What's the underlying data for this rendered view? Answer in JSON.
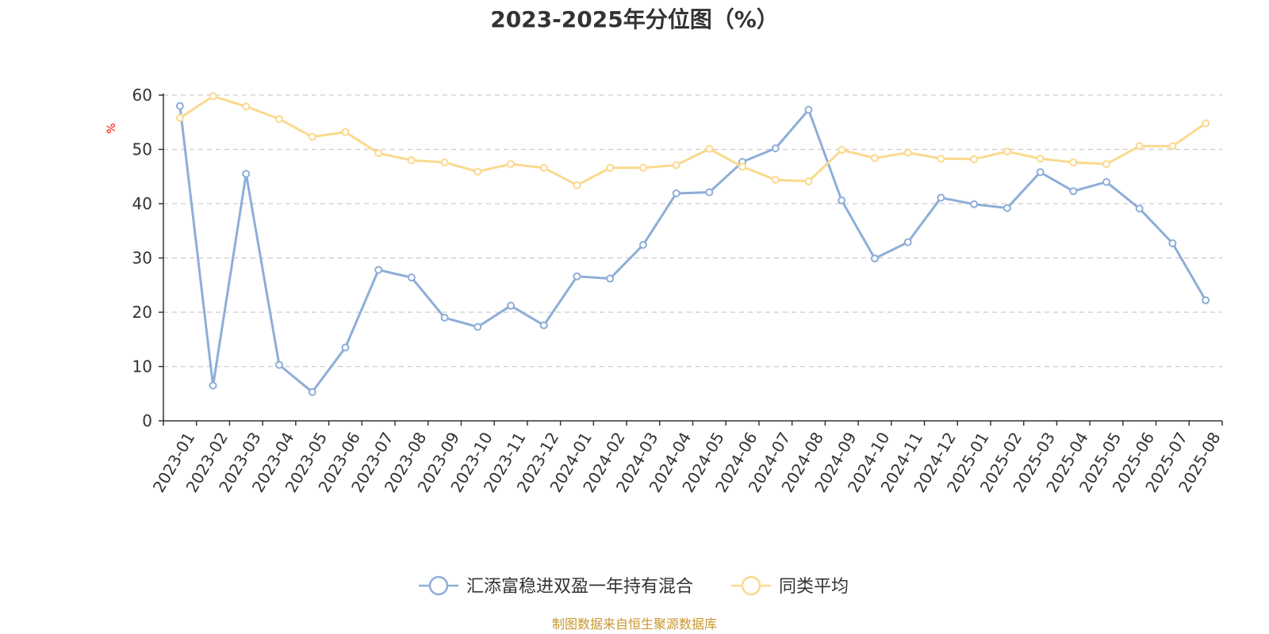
{
  "chart_data": {
    "type": "line",
    "title": "2023-2025年分位图（%）",
    "ylabel": "%",
    "ylim": [
      0,
      60
    ],
    "yticks": [
      0,
      10,
      20,
      30,
      40,
      50,
      60
    ],
    "grid": "horizontal-dashed",
    "legend_position": "bottom-center",
    "categories": [
      "2023-01",
      "2023-02",
      "2023-03",
      "2023-04",
      "2023-05",
      "2023-06",
      "2023-07",
      "2023-08",
      "2023-09",
      "2023-10",
      "2023-11",
      "2023-12",
      "2024-01",
      "2024-02",
      "2024-03",
      "2024-04",
      "2024-05",
      "2024-06",
      "2024-07",
      "2024-08",
      "2024-09",
      "2024-10",
      "2024-11",
      "2024-12",
      "2025-01",
      "2025-02",
      "2025-03",
      "2025-04",
      "2025-05",
      "2025-06",
      "2025-07",
      "2025-08"
    ],
    "series": [
      {
        "name": "汇添富稳进双盈一年持有混合",
        "color": "#8eaed8",
        "values": [
          58.0,
          6.5,
          45.5,
          10.3,
          5.3,
          13.5,
          27.8,
          26.4,
          19.0,
          17.3,
          21.2,
          17.6,
          26.6,
          26.2,
          32.4,
          41.9,
          42.1,
          47.7,
          50.2,
          57.3,
          40.6,
          29.9,
          32.9,
          41.1,
          39.9,
          39.2,
          45.8,
          42.3,
          44.0,
          39.1,
          32.7,
          22.2
        ]
      },
      {
        "name": "同类平均",
        "color": "#fbd98e",
        "values": [
          55.8,
          59.8,
          57.9,
          55.6,
          52.3,
          53.2,
          49.3,
          48.0,
          47.6,
          45.9,
          47.3,
          46.6,
          43.4,
          46.6,
          46.6,
          47.1,
          50.1,
          46.8,
          44.4,
          44.1,
          49.9,
          48.4,
          49.4,
          48.3,
          48.2,
          49.6,
          48.3,
          47.6,
          47.3,
          50.6,
          50.6,
          54.8
        ]
      }
    ]
  },
  "footer": {
    "source": "制图数据来自恒生聚源数据库"
  }
}
